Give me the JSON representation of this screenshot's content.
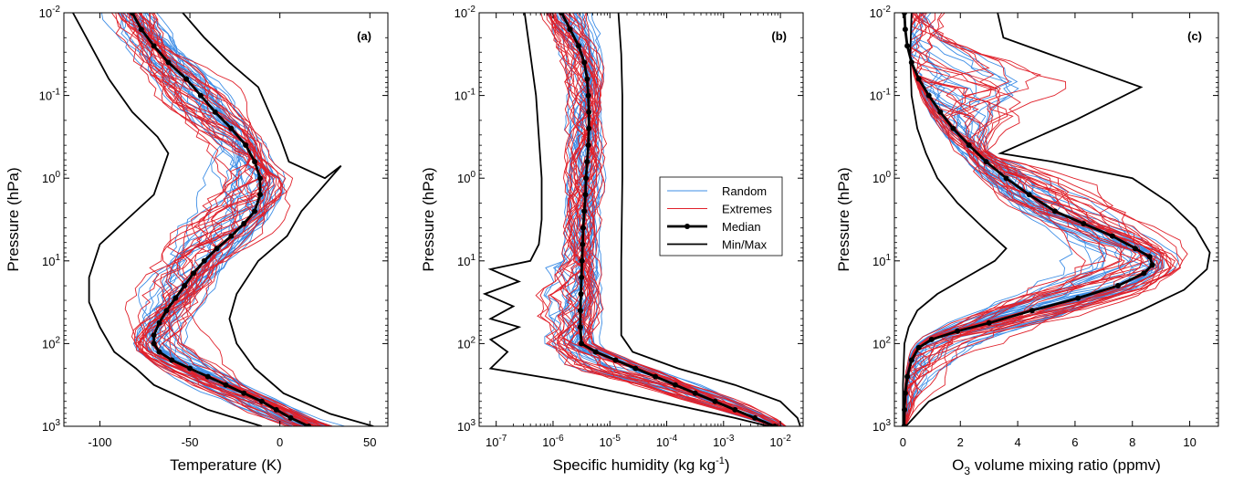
{
  "chart_data": [
    {
      "type": "line",
      "panel_label": "(a)",
      "xlabel": "Temperature (K)",
      "ylabel": "Pressure (hPa)",
      "xlim": [
        -120,
        60
      ],
      "xticks": [
        -100,
        -50,
        0,
        50
      ],
      "ylog": true,
      "yreversed": true,
      "ylim_exponents": [
        -2,
        3
      ],
      "yticks": [
        -2,
        -1,
        0,
        1,
        2,
        3
      ],
      "series": [
        {
          "name": "Min",
          "kind": "minmax",
          "color": "#000000",
          "points": [
            [
              -115,
              -2
            ],
            [
              -105,
              -1.6
            ],
            [
              -95,
              -1.2
            ],
            [
              -82,
              -0.8
            ],
            [
              -68,
              -0.5
            ],
            [
              -62,
              -0.3
            ],
            [
              -70,
              0.2
            ],
            [
              -85,
              0.5
            ],
            [
              -100,
              0.8
            ],
            [
              -106,
              1.2
            ],
            [
              -106,
              1.5
            ],
            [
              -100,
              1.8
            ],
            [
              -92,
              2.1
            ],
            [
              -80,
              2.3
            ],
            [
              -70,
              2.5
            ],
            [
              -55,
              2.65
            ],
            [
              -40,
              2.8
            ],
            [
              -25,
              2.9
            ],
            [
              -10,
              3
            ]
          ]
        },
        {
          "name": "Max",
          "kind": "minmax",
          "color": "#000000",
          "points": [
            [
              -54,
              -2
            ],
            [
              -42,
              -1.7
            ],
            [
              -28,
              -1.4
            ],
            [
              -12,
              -1.1
            ],
            [
              -6,
              -0.8
            ],
            [
              0,
              -0.5
            ],
            [
              5,
              -0.2
            ],
            [
              25,
              0
            ],
            [
              34,
              -0.15
            ],
            [
              24,
              0.1
            ],
            [
              12,
              0.4
            ],
            [
              4,
              0.7
            ],
            [
              -12,
              1.0
            ],
            [
              -24,
              1.4
            ],
            [
              -28,
              1.7
            ],
            [
              -24,
              2.0
            ],
            [
              -14,
              2.3
            ],
            [
              2,
              2.6
            ],
            [
              28,
              2.85
            ],
            [
              52,
              3
            ]
          ]
        },
        {
          "name": "Median",
          "kind": "median",
          "color": "#000000",
          "points": [
            [
              -82,
              -2
            ],
            [
              -77,
              -1.8
            ],
            [
              -70,
              -1.6
            ],
            [
              -62,
              -1.4
            ],
            [
              -52,
              -1.2
            ],
            [
              -44,
              -1.0
            ],
            [
              -36,
              -0.8
            ],
            [
              -27,
              -0.6
            ],
            [
              -19,
              -0.4
            ],
            [
              -14,
              -0.2
            ],
            [
              -11,
              0.0
            ],
            [
              -11,
              0.2
            ],
            [
              -14,
              0.4
            ],
            [
              -20,
              0.55
            ],
            [
              -27,
              0.7
            ],
            [
              -35,
              0.85
            ],
            [
              -42,
              1.0
            ],
            [
              -48,
              1.15
            ],
            [
              -53,
              1.3
            ],
            [
              -58,
              1.45
            ],
            [
              -63,
              1.6
            ],
            [
              -67,
              1.75
            ],
            [
              -70,
              1.9
            ],
            [
              -70,
              2.0
            ],
            [
              -67,
              2.1
            ],
            [
              -60,
              2.2
            ],
            [
              -50,
              2.3
            ],
            [
              -40,
              2.4
            ],
            [
              -30,
              2.5
            ],
            [
              -20,
              2.6
            ],
            [
              -10,
              2.7
            ],
            [
              -2,
              2.8
            ],
            [
              6,
              2.9
            ],
            [
              16,
              3
            ]
          ]
        }
      ]
    },
    {
      "type": "line",
      "panel_label": "(b)",
      "xlabel": "Specific humidity (kg kg",
      "xlabel_sup": "-1",
      "xlabel_tail": ")",
      "ylabel": "Pressure (hPa)",
      "xlog": true,
      "xlim_exponents": [
        -7.3,
        -1.6
      ],
      "xticks": [
        -7,
        -6,
        -5,
        -4,
        -3,
        -2
      ],
      "ylog": true,
      "yreversed": true,
      "ylim_exponents": [
        -2,
        3
      ],
      "yticks": [
        -2,
        -1,
        0,
        1,
        2,
        3
      ],
      "series": [
        {
          "name": "Min",
          "kind": "minmax",
          "color": "#000000",
          "points": [
            [
              -6.5,
              -2
            ],
            [
              -6.4,
              -1.5
            ],
            [
              -6.3,
              -1.0
            ],
            [
              -6.25,
              -0.5
            ],
            [
              -6.2,
              0.0
            ],
            [
              -6.2,
              0.5
            ],
            [
              -6.25,
              0.8
            ],
            [
              -6.4,
              1.0
            ],
            [
              -7.1,
              1.1
            ],
            [
              -6.6,
              1.25
            ],
            [
              -7.2,
              1.4
            ],
            [
              -6.7,
              1.55
            ],
            [
              -7.1,
              1.7
            ],
            [
              -6.6,
              1.8
            ],
            [
              -7.1,
              1.95
            ],
            [
              -6.8,
              2.1
            ],
            [
              -7.1,
              2.3
            ],
            [
              -5.8,
              2.45
            ],
            [
              -4.8,
              2.6
            ],
            [
              -3.8,
              2.75
            ],
            [
              -2.8,
              2.9
            ],
            [
              -2.2,
              3
            ]
          ]
        },
        {
          "name": "Max",
          "kind": "minmax",
          "color": "#000000",
          "points": [
            [
              -4.85,
              -2
            ],
            [
              -4.8,
              -1.5
            ],
            [
              -4.78,
              -1.0
            ],
            [
              -4.78,
              0.0
            ],
            [
              -4.8,
              1.0
            ],
            [
              -4.8,
              1.5
            ],
            [
              -4.8,
              1.9
            ],
            [
              -4.6,
              2.1
            ],
            [
              -3.8,
              2.3
            ],
            [
              -2.8,
              2.5
            ],
            [
              -2.0,
              2.7
            ],
            [
              -1.7,
              2.9
            ],
            [
              -1.65,
              3
            ]
          ]
        },
        {
          "name": "Median",
          "kind": "median",
          "color": "#000000",
          "points": [
            [
              -5.85,
              -2
            ],
            [
              -5.7,
              -1.8
            ],
            [
              -5.55,
              -1.6
            ],
            [
              -5.45,
              -1.4
            ],
            [
              -5.4,
              -1.2
            ],
            [
              -5.38,
              -1.0
            ],
            [
              -5.37,
              -0.8
            ],
            [
              -5.37,
              -0.6
            ],
            [
              -5.38,
              -0.4
            ],
            [
              -5.4,
              -0.2
            ],
            [
              -5.42,
              0.0
            ],
            [
              -5.43,
              0.2
            ],
            [
              -5.45,
              0.4
            ],
            [
              -5.47,
              0.6
            ],
            [
              -5.48,
              0.8
            ],
            [
              -5.49,
              1.0
            ],
            [
              -5.5,
              1.2
            ],
            [
              -5.51,
              1.4
            ],
            [
              -5.52,
              1.6
            ],
            [
              -5.52,
              1.8
            ],
            [
              -5.5,
              2.0
            ],
            [
              -5.25,
              2.1
            ],
            [
              -4.9,
              2.2
            ],
            [
              -4.55,
              2.3
            ],
            [
              -4.2,
              2.4
            ],
            [
              -3.85,
              2.5
            ],
            [
              -3.5,
              2.6
            ],
            [
              -3.15,
              2.7
            ],
            [
              -2.8,
              2.8
            ],
            [
              -2.45,
              2.9
            ],
            [
              -2.1,
              3
            ]
          ]
        }
      ],
      "legend": {
        "position": "center",
        "entries": [
          {
            "label": "Random",
            "color": "#3e8ee6",
            "style": "thin"
          },
          {
            "label": "Extremes",
            "color": "#e0202a",
            "style": "thin"
          },
          {
            "label": "Median",
            "color": "#000000",
            "style": "median"
          },
          {
            "label": "Min/Max",
            "color": "#000000",
            "style": "minmax"
          }
        ]
      }
    },
    {
      "type": "line",
      "panel_label": "(c)",
      "xlabel_prefix": "O",
      "xlabel_sub": "3",
      "xlabel": " volume mixing ratio (ppmv)",
      "ylabel": "Pressure (hPa)",
      "xlim": [
        -0.3,
        11
      ],
      "xticks": [
        0,
        2,
        4,
        6,
        8,
        10
      ],
      "ylog": true,
      "yreversed": true,
      "ylim_exponents": [
        -2,
        3
      ],
      "yticks": [
        -2,
        -1,
        0,
        1,
        2,
        3
      ],
      "series": [
        {
          "name": "Min",
          "kind": "minmax",
          "color": "#000000",
          "points": [
            [
              0.3,
              -2
            ],
            [
              0.25,
              -1.5
            ],
            [
              0.3,
              -1.0
            ],
            [
              0.5,
              -0.6
            ],
            [
              0.8,
              -0.3
            ],
            [
              1.2,
              0.0
            ],
            [
              1.9,
              0.3
            ],
            [
              2.8,
              0.6
            ],
            [
              3.6,
              0.85
            ],
            [
              3.2,
              1.0
            ],
            [
              2.2,
              1.2
            ],
            [
              1.2,
              1.4
            ],
            [
              0.5,
              1.6
            ],
            [
              0.2,
              1.8
            ],
            [
              0.05,
              2.0
            ],
            [
              0.0,
              2.5
            ],
            [
              0.0,
              3
            ]
          ]
        },
        {
          "name": "Max",
          "kind": "minmax",
          "color": "#000000",
          "points": [
            [
              3.3,
              -2
            ],
            [
              3.5,
              -1.7
            ],
            [
              5.5,
              -1.45
            ],
            [
              8.3,
              -1.1
            ],
            [
              6.0,
              -0.7
            ],
            [
              3.4,
              -0.3
            ],
            [
              5.2,
              -0.2
            ],
            [
              8.0,
              0.0
            ],
            [
              9.3,
              0.3
            ],
            [
              10.2,
              0.6
            ],
            [
              10.7,
              0.9
            ],
            [
              10.6,
              1.1
            ],
            [
              9.8,
              1.35
            ],
            [
              8.3,
              1.6
            ],
            [
              6.5,
              1.85
            ],
            [
              4.6,
              2.1
            ],
            [
              2.6,
              2.4
            ],
            [
              0.9,
              2.7
            ],
            [
              0.1,
              3
            ]
          ]
        },
        {
          "name": "Median",
          "kind": "median",
          "color": "#000000",
          "points": [
            [
              0.05,
              -2
            ],
            [
              0.08,
              -1.8
            ],
            [
              0.15,
              -1.6
            ],
            [
              0.3,
              -1.4
            ],
            [
              0.55,
              -1.2
            ],
            [
              0.9,
              -1.0
            ],
            [
              1.3,
              -0.8
            ],
            [
              1.75,
              -0.6
            ],
            [
              2.3,
              -0.4
            ],
            [
              2.9,
              -0.2
            ],
            [
              3.6,
              0.0
            ],
            [
              4.4,
              0.2
            ],
            [
              5.3,
              0.4
            ],
            [
              6.3,
              0.55
            ],
            [
              7.3,
              0.7
            ],
            [
              8.1,
              0.85
            ],
            [
              8.6,
              0.95
            ],
            [
              8.7,
              1.05
            ],
            [
              8.4,
              1.15
            ],
            [
              7.5,
              1.3
            ],
            [
              6.1,
              1.45
            ],
            [
              4.5,
              1.6
            ],
            [
              3.0,
              1.75
            ],
            [
              1.9,
              1.85
            ],
            [
              1.0,
              1.95
            ],
            [
              0.55,
              2.05
            ],
            [
              0.3,
              2.2
            ],
            [
              0.15,
              2.4
            ],
            [
              0.08,
              2.6
            ],
            [
              0.05,
              2.8
            ],
            [
              0.04,
              3
            ]
          ]
        }
      ]
    }
  ]
}
